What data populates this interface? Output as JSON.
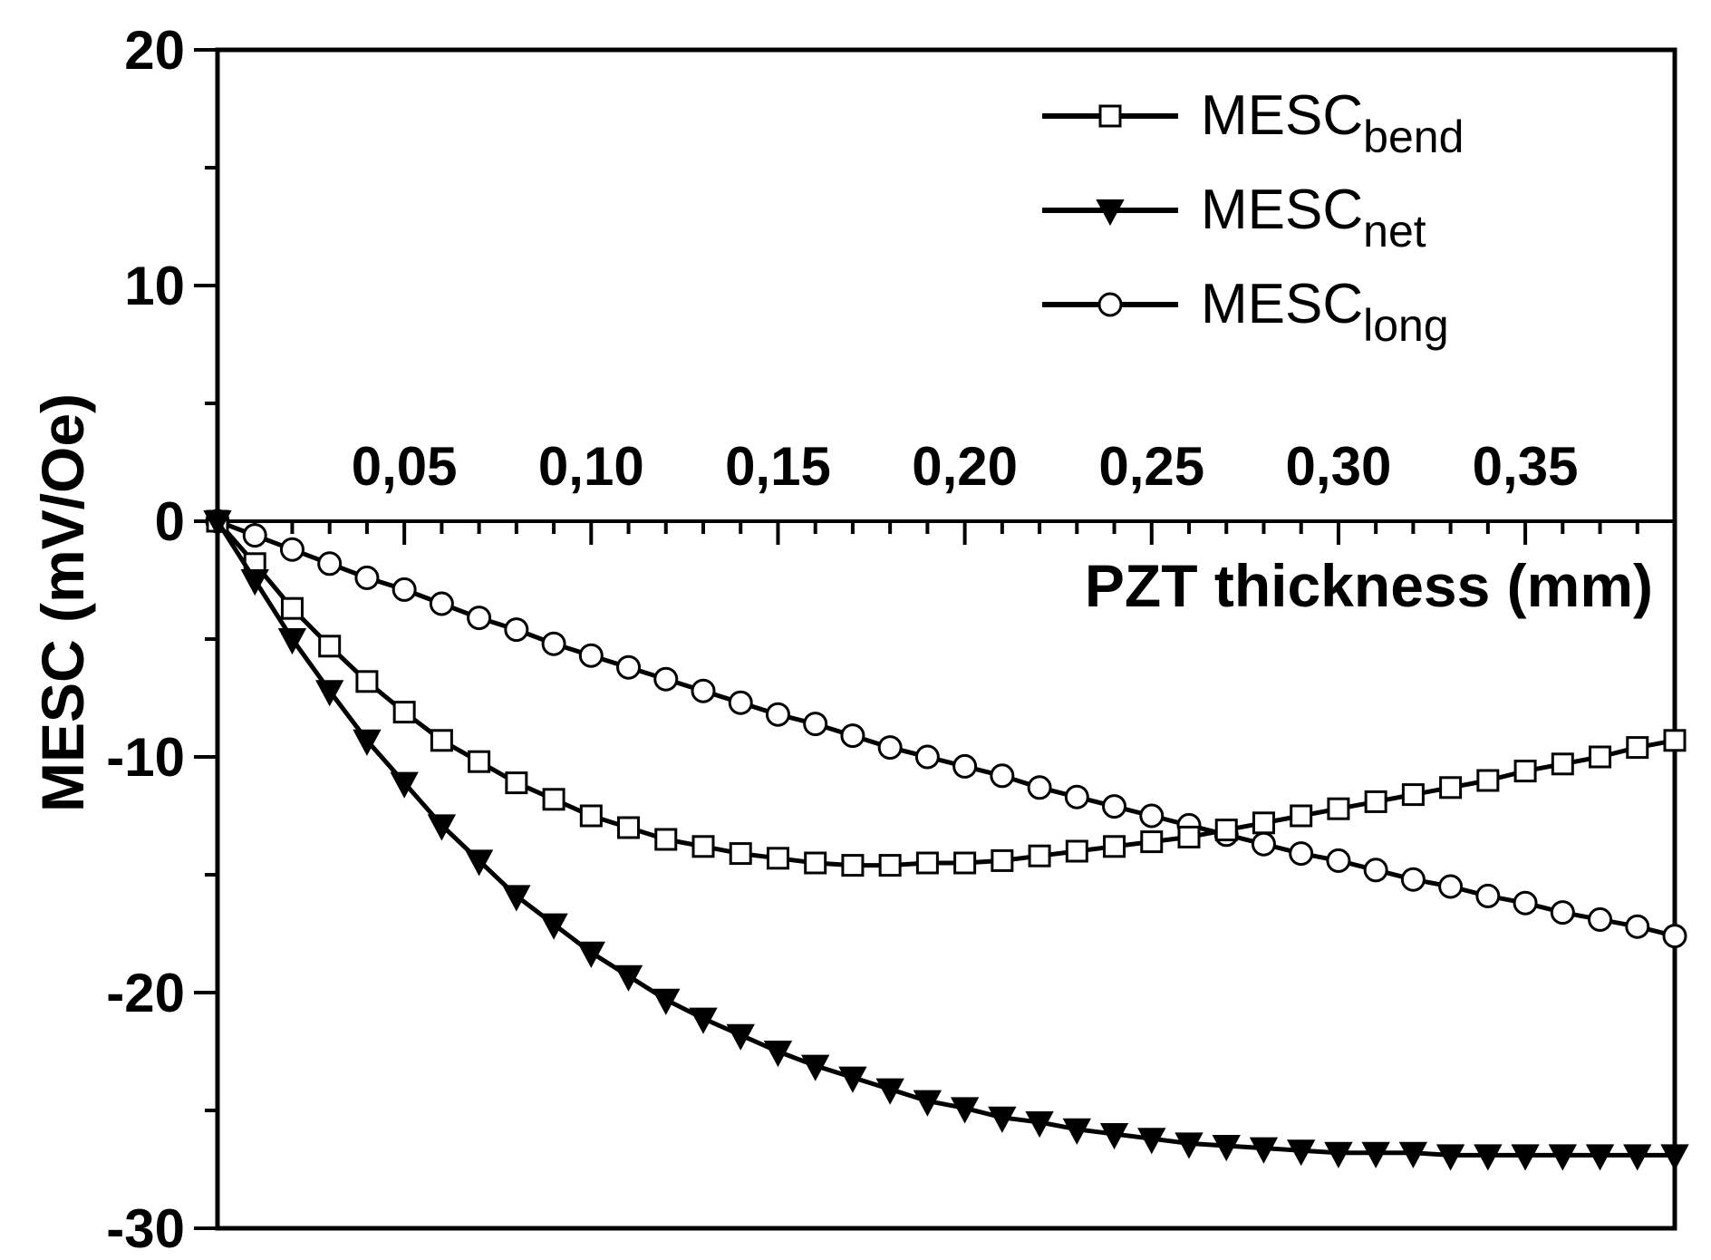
{
  "chart_data": {
    "type": "line",
    "title": "",
    "xlabel": "PZT thickness (mm)",
    "ylabel": "MESC (mV/Oe)",
    "xlim": [
      0,
      0.39
    ],
    "ylim": [
      -30,
      20
    ],
    "x_ticks": [
      0.05,
      0.1,
      0.15,
      0.2,
      0.25,
      0.3,
      0.35
    ],
    "x_tick_labels": [
      "0,05",
      "0,10",
      "0,15",
      "0,20",
      "0,25",
      "0,30",
      "0,35"
    ],
    "y_ticks": [
      -30,
      -20,
      -10,
      0,
      10,
      20
    ],
    "y_tick_labels": [
      "-30",
      "-20",
      "-10",
      "0",
      "10",
      "20"
    ],
    "legend_position": "top-right",
    "x": [
      0,
      0.01,
      0.02,
      0.03,
      0.04,
      0.05,
      0.06,
      0.07,
      0.08,
      0.09,
      0.1,
      0.11,
      0.12,
      0.13,
      0.14,
      0.15,
      0.16,
      0.17,
      0.18,
      0.19,
      0.2,
      0.21,
      0.22,
      0.23,
      0.24,
      0.25,
      0.26,
      0.27,
      0.28,
      0.29,
      0.3,
      0.31,
      0.32,
      0.33,
      0.34,
      0.35,
      0.36,
      0.37,
      0.38,
      0.39
    ],
    "series": [
      {
        "name": "MESC",
        "subscript": "bend",
        "marker": "square-open",
        "values": [
          0,
          -1.8,
          -3.7,
          -5.3,
          -6.8,
          -8.1,
          -9.3,
          -10.2,
          -11.1,
          -11.8,
          -12.5,
          -13.0,
          -13.5,
          -13.8,
          -14.1,
          -14.3,
          -14.5,
          -14.6,
          -14.6,
          -14.5,
          -14.5,
          -14.4,
          -14.2,
          -14.0,
          -13.8,
          -13.6,
          -13.4,
          -13.1,
          -12.8,
          -12.5,
          -12.2,
          -11.9,
          -11.6,
          -11.3,
          -11.0,
          -10.6,
          -10.3,
          -10.0,
          -9.6,
          -9.3
        ]
      },
      {
        "name": "MESC",
        "subscript": "net",
        "marker": "triangle-down-filled",
        "values": [
          0,
          -2.5,
          -5.0,
          -7.2,
          -9.3,
          -11.1,
          -12.9,
          -14.4,
          -15.9,
          -17.1,
          -18.3,
          -19.3,
          -20.3,
          -21.1,
          -21.8,
          -22.5,
          -23.1,
          -23.6,
          -24.1,
          -24.6,
          -24.9,
          -25.3,
          -25.5,
          -25.8,
          -26.0,
          -26.2,
          -26.4,
          -26.5,
          -26.6,
          -26.7,
          -26.8,
          -26.8,
          -26.8,
          -26.9,
          -26.9,
          -26.9,
          -26.9,
          -26.9,
          -26.9,
          -26.9
        ]
      },
      {
        "name": "MESC",
        "subscript": "long",
        "marker": "circle-open",
        "values": [
          0,
          -0.6,
          -1.2,
          -1.8,
          -2.4,
          -2.9,
          -3.5,
          -4.1,
          -4.6,
          -5.2,
          -5.7,
          -6.2,
          -6.7,
          -7.2,
          -7.7,
          -8.2,
          -8.6,
          -9.1,
          -9.6,
          -10.0,
          -10.4,
          -10.8,
          -11.3,
          -11.7,
          -12.1,
          -12.5,
          -12.9,
          -13.3,
          -13.7,
          -14.1,
          -14.4,
          -14.8,
          -15.2,
          -15.5,
          -15.9,
          -16.2,
          -16.6,
          -16.9,
          -17.2,
          -17.6
        ]
      }
    ]
  }
}
